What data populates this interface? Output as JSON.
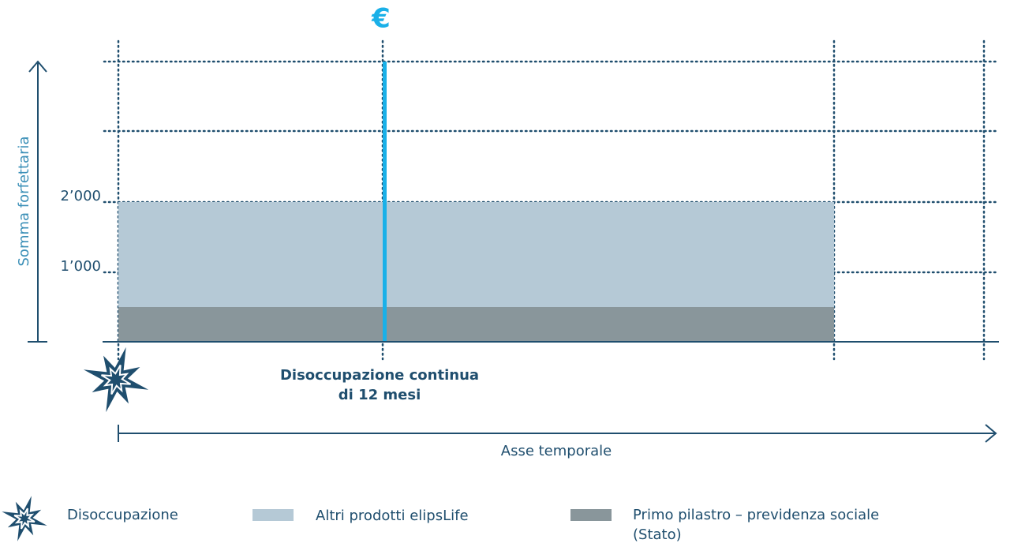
{
  "header": {
    "symbol": "€"
  },
  "axes": {
    "y_label": "Somma forfettaria",
    "y_ticks": [
      "2’000",
      "1’000"
    ],
    "x_label": "Asse temporale"
  },
  "annotation": {
    "lines": [
      "Disoccupazione continua",
      "di 12 mesi"
    ]
  },
  "legend": [
    {
      "lines": [
        "Disoccupazione"
      ]
    },
    {
      "lines": [
        "Altri prodotti elipsLife"
      ]
    },
    {
      "lines": [
        "Primo pilastro – previdenza sociale",
        "(Stato)"
      ]
    }
  ]
}
